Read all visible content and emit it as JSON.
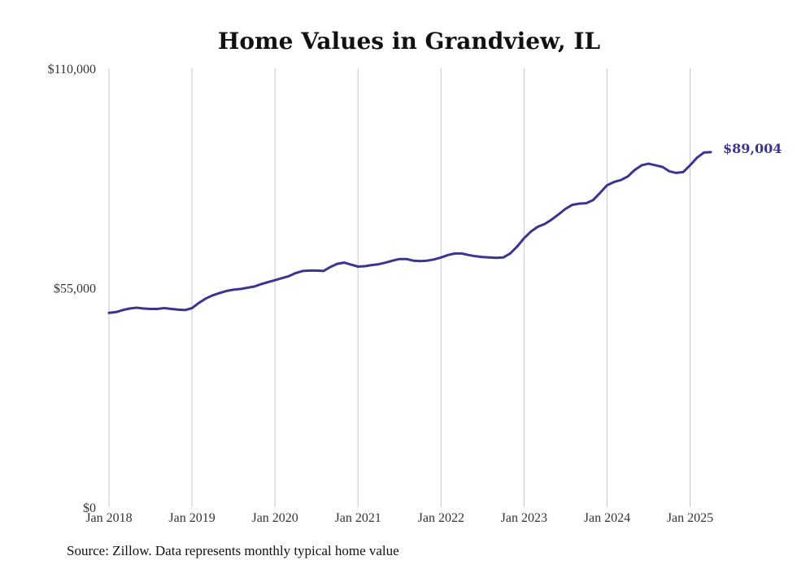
{
  "chart_data": {
    "type": "line",
    "title": "Home Values in Grandview, IL",
    "y_ticks": [
      "$0",
      "$55,000",
      "$110,000"
    ],
    "ylim": [
      0,
      110000
    ],
    "x_ticks": [
      "Jan 2018",
      "Jan 2019",
      "Jan 2020",
      "Jan 2021",
      "Jan 2022",
      "Jan 2023",
      "Jan 2024",
      "Jan 2025"
    ],
    "xlim": [
      "2018-01",
      "2025-04"
    ],
    "grid": "vertical",
    "series": [
      {
        "color": "#3b3590",
        "end_label": "$89,004",
        "x": [
          "2018-01",
          "2018-02",
          "2018-03",
          "2018-04",
          "2018-05",
          "2018-06",
          "2018-07",
          "2018-08",
          "2018-09",
          "2018-10",
          "2018-11",
          "2018-12",
          "2019-01",
          "2019-02",
          "2019-03",
          "2019-04",
          "2019-05",
          "2019-06",
          "2019-07",
          "2019-08",
          "2019-09",
          "2019-10",
          "2019-11",
          "2019-12",
          "2020-01",
          "2020-02",
          "2020-03",
          "2020-04",
          "2020-05",
          "2020-06",
          "2020-07",
          "2020-08",
          "2020-09",
          "2020-10",
          "2020-11",
          "2020-12",
          "2021-01",
          "2021-02",
          "2021-03",
          "2021-04",
          "2021-05",
          "2021-06",
          "2021-07",
          "2021-08",
          "2021-09",
          "2021-10",
          "2021-11",
          "2021-12",
          "2022-01",
          "2022-02",
          "2022-03",
          "2022-04",
          "2022-05",
          "2022-06",
          "2022-07",
          "2022-08",
          "2022-09",
          "2022-10",
          "2022-11",
          "2022-12",
          "2023-01",
          "2023-02",
          "2023-03",
          "2023-04",
          "2023-05",
          "2023-06",
          "2023-07",
          "2023-08",
          "2023-09",
          "2023-10",
          "2023-11",
          "2023-12",
          "2024-01",
          "2024-02",
          "2024-03",
          "2024-04",
          "2024-05",
          "2024-06",
          "2024-07",
          "2024-08",
          "2024-09",
          "2024-10",
          "2024-11",
          "2024-12",
          "2025-01",
          "2025-02",
          "2025-03",
          "2025-04"
        ],
        "values": [
          48700,
          48900,
          49400,
          49800,
          50000,
          49800,
          49700,
          49700,
          49900,
          49700,
          49500,
          49400,
          49900,
          51200,
          52300,
          53100,
          53700,
          54200,
          54500,
          54700,
          55000,
          55300,
          55900,
          56400,
          56900,
          57400,
          57900,
          58700,
          59200,
          59300,
          59300,
          59200,
          60200,
          61000,
          61300,
          60800,
          60300,
          60400,
          60700,
          60900,
          61300,
          61800,
          62200,
          62200,
          61800,
          61700,
          61800,
          62100,
          62600,
          63200,
          63600,
          63600,
          63200,
          62900,
          62700,
          62600,
          62500,
          62600,
          63600,
          65300,
          67400,
          69100,
          70300,
          71000,
          72100,
          73400,
          74800,
          75800,
          76100,
          76200,
          77000,
          78800,
          80700,
          81500,
          82000,
          82900,
          84500,
          85700,
          86100,
          85700,
          85300,
          84200,
          83800,
          84000,
          85700,
          87600,
          88900,
          89004
        ]
      }
    ]
  },
  "source_text": "Source: Zillow. Data represents monthly typical home value"
}
